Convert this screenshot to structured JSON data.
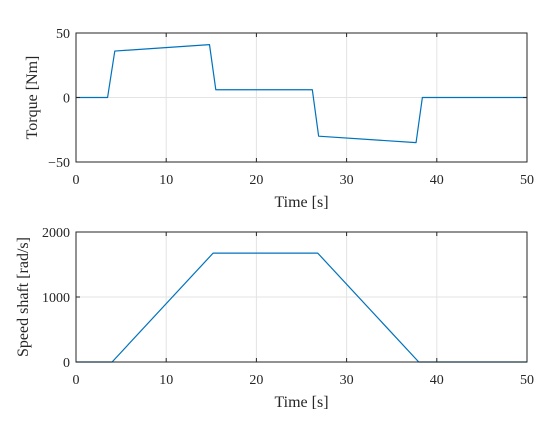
{
  "chart_data": [
    {
      "type": "line",
      "xlabel": "Time [s]",
      "ylabel": "Torque [Nm]",
      "xlim": [
        0,
        50
      ],
      "ylim": [
        -50,
        50
      ],
      "xticks": [
        0,
        10,
        20,
        30,
        40,
        50
      ],
      "yticks": [
        -50,
        0,
        50
      ],
      "grid": true,
      "line_color": "#0072BD",
      "series": [
        {
          "x": [
            0,
            3.5,
            4.3,
            14.8,
            15.5,
            26.2,
            26.9,
            37.7,
            38.4,
            50
          ],
          "y": [
            0,
            0,
            36,
            41,
            6,
            6,
            -30,
            -35,
            0,
            0
          ]
        }
      ]
    },
    {
      "type": "line",
      "xlabel": "Time [s]",
      "ylabel": "Speed shaft [rad/s]",
      "xlim": [
        0,
        50
      ],
      "ylim": [
        0,
        2000
      ],
      "xticks": [
        0,
        10,
        20,
        30,
        40,
        50
      ],
      "yticks": [
        0,
        1000,
        2000
      ],
      "grid": true,
      "line_color": "#0072BD",
      "series": [
        {
          "x": [
            0,
            4,
            15.2,
            26.8,
            38,
            50
          ],
          "y": [
            0,
            0,
            1675,
            1675,
            0,
            0
          ]
        }
      ]
    }
  ]
}
